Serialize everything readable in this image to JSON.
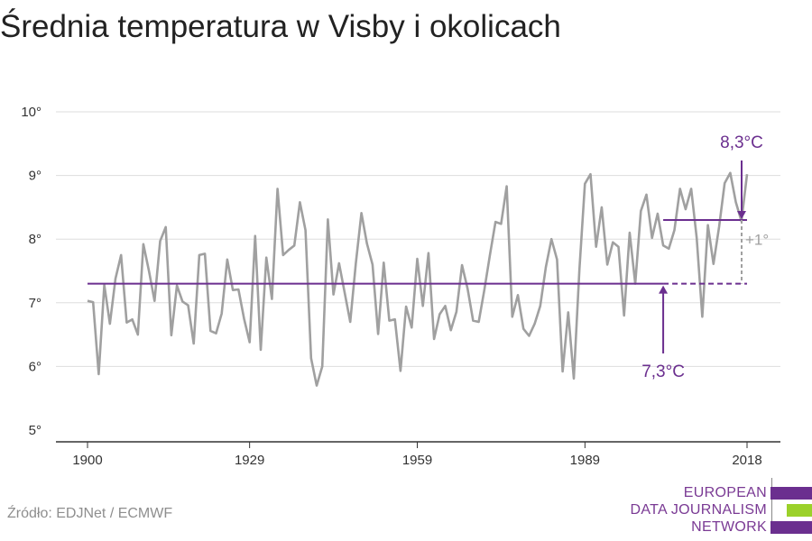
{
  "title": "Średnia temperatura w Visby i okolicach",
  "source": "Źródło: EDJNet / ECMWF",
  "logo": {
    "lines": [
      "EUROPEAN",
      "DATA JOURNALISM",
      "NETWORK"
    ],
    "colors": [
      "#6b2f8f",
      "#9bd12a",
      "#6b2f8f"
    ]
  },
  "colors": {
    "series": "#a0a0a0",
    "accent": "#6b2f8f",
    "grid": "#dddddd",
    "delta": "#a0a0a0"
  },
  "chart_data": {
    "type": "line",
    "title": "Średnia temperatura w Visby i okolicach",
    "xlabel": "",
    "ylabel": "",
    "xlim": [
      1900,
      2018
    ],
    "ylim": [
      5,
      10
    ],
    "xticks": [
      1900,
      1929,
      1959,
      1989,
      2018
    ],
    "xtick_labels": [
      "1900",
      "1929",
      "1959",
      "1989",
      "2018"
    ],
    "yticks": [
      5,
      6,
      7,
      8,
      9,
      10
    ],
    "ytick_labels": [
      "5°",
      "6°",
      "7°",
      "8°",
      "9°",
      "10°"
    ],
    "grid": true,
    "series": [
      {
        "x": [
          1900,
          1901,
          1902,
          1903,
          1904,
          1905,
          1906,
          1907,
          1908,
          1909,
          1910,
          1911,
          1912,
          1913,
          1914,
          1915,
          1916,
          1917,
          1918,
          1919,
          1920,
          1921,
          1922,
          1923,
          1924,
          1925,
          1926,
          1927,
          1928,
          1929,
          1930,
          1931,
          1932,
          1933,
          1934,
          1935,
          1936,
          1937,
          1938,
          1939,
          1940,
          1941,
          1942,
          1943,
          1944,
          1945,
          1946,
          1947,
          1948,
          1949,
          1950,
          1951,
          1952,
          1953,
          1954,
          1955,
          1956,
          1957,
          1958,
          1959,
          1960,
          1961,
          1962,
          1963,
          1964,
          1965,
          1966,
          1967,
          1968,
          1969,
          1970,
          1971,
          1972,
          1973,
          1974,
          1975,
          1976,
          1977,
          1978,
          1979,
          1980,
          1981,
          1982,
          1983,
          1984,
          1985,
          1986,
          1987,
          1988,
          1989,
          1990,
          1991,
          1992,
          1993,
          1994,
          1995,
          1996,
          1997,
          1998,
          1999,
          2000,
          2001,
          2002,
          2003,
          2004,
          2005,
          2006,
          2007,
          2008,
          2009,
          2010,
          2011,
          2012,
          2013,
          2014,
          2015,
          2016,
          2017,
          2018
        ],
        "values": [
          7.03,
          7.01,
          5.88,
          7.28,
          6.67,
          7.38,
          7.75,
          6.69,
          6.74,
          6.5,
          7.92,
          7.5,
          7.03,
          7.97,
          8.19,
          6.49,
          7.27,
          7.02,
          6.96,
          6.36,
          7.75,
          7.77,
          6.56,
          6.52,
          6.83,
          7.68,
          7.2,
          7.21,
          6.75,
          6.38,
          8.05,
          6.26,
          7.71,
          7.06,
          8.79,
          7.75,
          7.83,
          7.9,
          8.58,
          8.14,
          6.13,
          5.7,
          6.0,
          8.31,
          7.13,
          7.62,
          7.16,
          6.7,
          7.62,
          8.41,
          7.93,
          7.6,
          6.51,
          7.63,
          6.72,
          6.74,
          5.93,
          6.94,
          6.61,
          7.69,
          6.95,
          7.78,
          6.43,
          6.82,
          6.95,
          6.57,
          6.86,
          7.59,
          7.22,
          6.72,
          6.7,
          7.2,
          7.75,
          8.27,
          8.24,
          8.83,
          6.78,
          7.12,
          6.59,
          6.48,
          6.67,
          6.95,
          7.56,
          8.0,
          7.68,
          5.92,
          6.85,
          5.81,
          7.52,
          8.87,
          9.02,
          7.88,
          8.5,
          7.6,
          7.95,
          7.88,
          6.8,
          8.1,
          7.3,
          8.44,
          8.7,
          8.02,
          8.4,
          7.9,
          7.85,
          8.14,
          8.79,
          8.47,
          8.79,
          8.02,
          6.78,
          8.22,
          7.61,
          8.19,
          8.88,
          9.04,
          8.58,
          8.28,
          9.02
        ]
      }
    ],
    "annotations": {
      "baseline": {
        "value": 7.3,
        "from": 1900,
        "to": 2018,
        "dashed_from": 2003,
        "label": "7,3°C"
      },
      "recent": {
        "value": 8.3,
        "from": 2003,
        "to": 2018,
        "label": "8,3°C"
      },
      "difference": {
        "label": "+1°"
      }
    }
  }
}
